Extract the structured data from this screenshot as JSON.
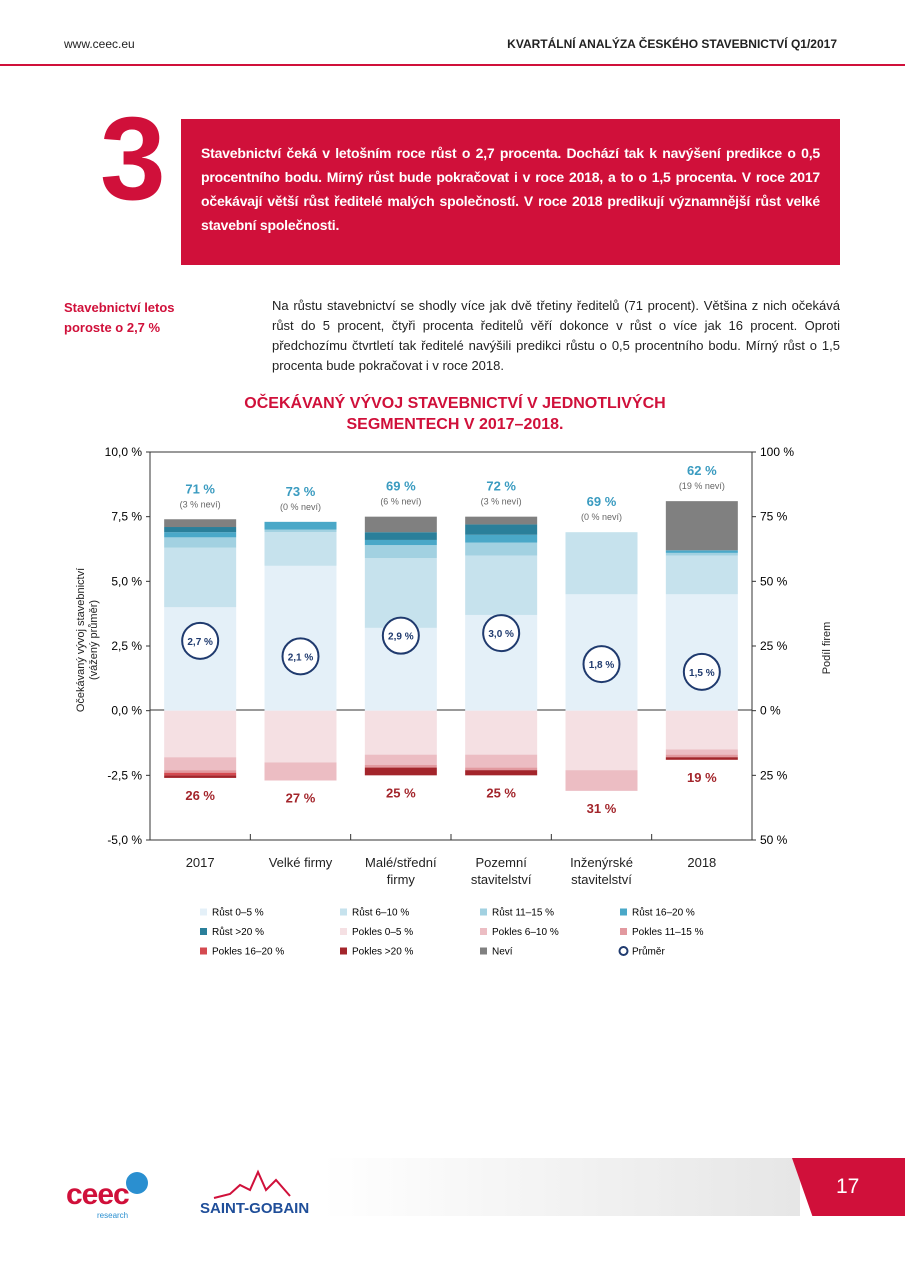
{
  "header": {
    "site": "www.ceec.eu",
    "title": "KVARTÁLNÍ ANALÝZA ČESKÉHO STAVEBNICTVÍ Q1/2017"
  },
  "section": {
    "number": "3",
    "highlight": "Stavebnictví čeká v letošním roce růst o 2,7 procenta. Dochází tak k navýšení predikce o 0,5 procentního bodu. Mírný růst bude pokračovat i v roce 2018, a to o 1,5 procenta. V roce 2017 očekávají větší růst ředitelé malých společností. V roce 2018 predikují významnější růst velké stavební společnosti."
  },
  "sidebar_heading": "Stavebnictví letos poroste o 2,7 %",
  "paragraph": "Na růstu stavebnictví se shodly více jak dvě třetiny ředitelů (71 procent). Většina z nich očekává růst do 5 procent, čtyři procenta ředitelů věří dokonce v růst o více jak 16 procent. Oproti předchozímu čtvrtletí tak ředitelé navýšili predikci růstu o 0,5 procentního bodu. Mírný růst o 1,5 procenta bude pokračovat i v roce 2018.",
  "chart_data": {
    "type": "stacked_bar",
    "title": "OČEKÁVANÝ VÝVOJ STAVEBNICTVÍ V JEDNOTLIVÝCH SEGMENTECH V 2017–2018.",
    "ylabel": "Očekávaný vývoj stavebnictví (vážený průměr)",
    "y2label": "Podíl firem",
    "categories": [
      "2017",
      "Velké firmy",
      "Malé/střední firmy",
      "Pozemní stavitelství",
      "Inženýrské stavitelství",
      "2018"
    ],
    "ylim": [
      -5,
      10
    ],
    "yticks": [
      {
        "value": 10,
        "label": "10,0 %"
      },
      {
        "value": 7.5,
        "label": "7,5 %"
      },
      {
        "value": 5,
        "label": "5,0 %"
      },
      {
        "value": 2.5,
        "label": "2,5 %"
      },
      {
        "value": 0,
        "label": "0,0 %"
      },
      {
        "value": -2.5,
        "label": "-2,5 %"
      },
      {
        "value": -5,
        "label": "-5,0 %"
      }
    ],
    "y2lim": [
      -50,
      100
    ],
    "y2ticks": [
      {
        "value": 100,
        "label": "100 %"
      },
      {
        "value": 75,
        "label": "75 %"
      },
      {
        "value": 50,
        "label": "50 %"
      },
      {
        "value": 25,
        "label": "25 %"
      },
      {
        "value": 0,
        "label": "0 %"
      },
      {
        "value": -25,
        "label": "25 %"
      },
      {
        "value": -50,
        "label": "50 %"
      }
    ],
    "series": [
      {
        "name": "Růst 0–5 %",
        "color": "#e4f0f8",
        "axis": "y2",
        "values": [
          40,
          56,
          32,
          37,
          45,
          45
        ]
      },
      {
        "name": "Růst 6–10 %",
        "color": "#c6e2ed",
        "axis": "y2",
        "values": [
          23,
          13,
          27,
          23,
          24,
          15
        ]
      },
      {
        "name": "Růst 11–15 %",
        "color": "#a2d1e1",
        "axis": "y2",
        "values": [
          4,
          1,
          5,
          5,
          0,
          1
        ]
      },
      {
        "name": "Růst 16–20 %",
        "color": "#4aa8c8",
        "axis": "y2",
        "values": [
          2,
          3,
          2,
          3,
          0,
          1
        ]
      },
      {
        "name": "Růst >20 %",
        "color": "#2a7f9a",
        "axis": "y2",
        "values": [
          2,
          0,
          3,
          4,
          0,
          0
        ]
      },
      {
        "name": "Pokles 0–5 %",
        "color": "#f5e0e3",
        "axis": "y2",
        "values": [
          -18,
          -20,
          -17,
          -17,
          -23,
          -15
        ]
      },
      {
        "name": "Pokles 6–10 %",
        "color": "#ecbdc3",
        "axis": "y2",
        "values": [
          -5,
          -7,
          -4,
          -5,
          -8,
          -2
        ]
      },
      {
        "name": "Pokles 11–15 %",
        "color": "#e2999f",
        "axis": "y2",
        "values": [
          -1,
          0,
          -1,
          -1,
          0,
          -1
        ]
      },
      {
        "name": "Pokles 16–20 %",
        "color": "#d44a50",
        "axis": "y2",
        "values": [
          -1,
          0,
          0,
          0,
          0,
          0
        ]
      },
      {
        "name": "Pokles >20 %",
        "color": "#a3252b",
        "axis": "y2",
        "values": [
          -1,
          0,
          -3,
          -2,
          0,
          -1
        ]
      },
      {
        "name": "Neví",
        "color": "#808080",
        "axis": "y2",
        "values": [
          3,
          0,
          6,
          3,
          0,
          19
        ]
      }
    ],
    "growth_labels": [
      "71 %",
      "73 %",
      "69 %",
      "72 %",
      "69 %",
      "62 %"
    ],
    "unknown_labels": [
      "(3 % neví)",
      "(0 % neví)",
      "(6 % neví)",
      "(3 % neví)",
      "(0 % neví)",
      "(19 % neví)"
    ],
    "decline_labels": [
      "26 %",
      "27 %",
      "25 %",
      "25 %",
      "31 %",
      "19 %"
    ],
    "mean": {
      "name": "Průměr",
      "color": "#1f3a6e",
      "values": [
        2.7,
        2.1,
        2.9,
        3.0,
        1.8,
        1.5
      ],
      "value_labels": [
        "2,7 %",
        "2,1 %",
        "2,9 %",
        "3,0 %",
        "1,8 %",
        "1,5 %"
      ]
    }
  },
  "footer": {
    "logo": "ceec",
    "logo_sub": "research",
    "partner": "SAINT-GOBAIN",
    "page_number": "17"
  }
}
